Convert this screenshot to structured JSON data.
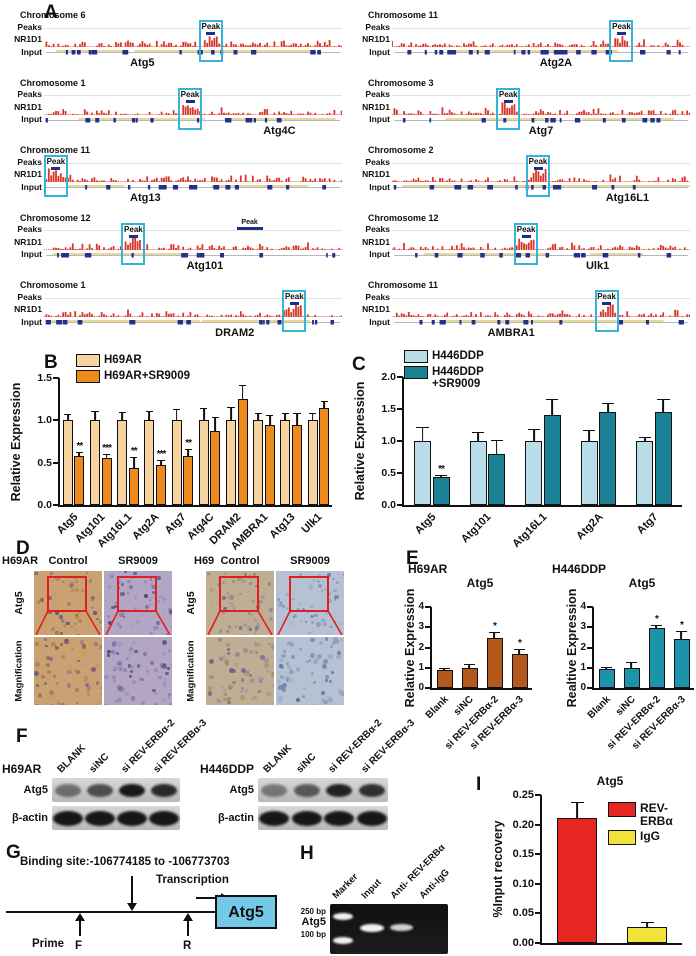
{
  "colors": {
    "signal_red": "#d9372a",
    "input_blue": "#22308a",
    "input_yellow": "#d4b22c",
    "peak_box": "#35b4d8",
    "atg5_box": "#74c8e8",
    "peach": "#f6d3a0",
    "orange": "#ec8a1e",
    "light_blue": "#b9dde8",
    "teal": "#1b8296",
    "brown": "#b4591c",
    "teal2": "#1b93a8",
    "red": "#e62621",
    "yellow": "#f1e33c"
  },
  "panel_a": {
    "label": "A",
    "row_labels": [
      "Peaks",
      "NR1D1",
      "Input"
    ],
    "peak_label": "Peak",
    "tracks": [
      {
        "chromosome": "Chromosome 6",
        "gene": "Atg5",
        "peak_x": 56,
        "gene_x": 33
      },
      {
        "chromosome": "Chromosome 11",
        "gene": "Atg2A",
        "peak_x": 77,
        "gene_x": 55
      },
      {
        "chromosome": "Chromosome 1",
        "gene": "Atg4C",
        "peak_x": 49,
        "gene_x": 79
      },
      {
        "chromosome": "Chromosome 3",
        "gene": "Atg7",
        "peak_x": 39,
        "gene_x": 50
      },
      {
        "chromosome": "Chromosome 11",
        "gene": "Atg13",
        "peak_x": 4,
        "gene_x": 34
      },
      {
        "chromosome": "Chromosome 2",
        "gene": "Atg16L1",
        "peak_x": 49,
        "gene_x": 79
      },
      {
        "chromosome": "Chromosome 12",
        "gene": "Atg101",
        "peak_x": 30,
        "gene_x": 54,
        "peak2_x": 69
      },
      {
        "chromosome": "Chromosome 12",
        "gene": "Ulk1",
        "peak_x": 45,
        "gene_x": 69
      },
      {
        "chromosome": "Chromosome 1",
        "gene": "DRAM2",
        "peak_x": 84,
        "gene_x": 64
      },
      {
        "chromosome": "Chromosome 11",
        "gene": "AMBRA1",
        "peak_x": 72,
        "gene_x": 40
      }
    ]
  },
  "panel_b": {
    "label": "B"
  },
  "panel_c": {
    "label": "C"
  },
  "panel_d": {
    "label": "D",
    "cell_lines": [
      "H69AR",
      "H69"
    ],
    "col_headers": [
      "Control",
      "SR9009",
      "Control",
      "SR9009"
    ],
    "row_labels": [
      "Atg5",
      "Magnification"
    ]
  },
  "panel_e": {
    "label": "E"
  },
  "panel_f": {
    "label": "F",
    "cell_lines": [
      "H69AR",
      "H446DDP"
    ],
    "lanes": [
      "BLANK",
      "siNC",
      "si REV-ERBα-2",
      "si REV-ERBα-3"
    ],
    "rows": [
      "Atg5",
      "β-actin"
    ]
  },
  "panel_g": {
    "label": "G",
    "binding_site": "Binding site:-106774185 to -106773703",
    "transcription": "Transcription",
    "gene_box": "Atg5",
    "prime_label": "Prime",
    "primer_f": "F",
    "primer_r": "R"
  },
  "panel_h": {
    "label": "H",
    "lanes": [
      "Marker",
      "Input",
      "Anti- REV-ERBα",
      "Anti-IgG"
    ],
    "marker_labels": [
      "250 bp",
      "Atg5",
      "100 bp"
    ]
  },
  "panel_i": {
    "label": "I"
  },
  "chart_data": [
    {
      "id": "B",
      "type": "bar",
      "ylabel": "Relative Expression",
      "ylim": [
        0,
        1.5
      ],
      "yticks": [
        "0.0",
        "0.5",
        "1.0",
        "1.5"
      ],
      "categories": [
        "Atg5",
        "Atg101",
        "Atg16L1",
        "Atg2A",
        "Atg7",
        "Atg4C",
        "DRAM2",
        "AMBRA1",
        "Atg13",
        "Ulk1"
      ],
      "series": [
        {
          "name": "H69AR",
          "color": "#f6d3a0",
          "values": [
            1,
            1,
            1,
            1,
            1,
            1,
            1,
            1,
            1,
            1
          ],
          "errors": [
            0.06,
            0.1,
            0.09,
            0.1,
            0.12,
            0.14,
            0.15,
            0.08,
            0.08,
            0.08
          ]
        },
        {
          "name": "H69AR+SR9009",
          "color": "#ec8a1e",
          "values": [
            0.58,
            0.55,
            0.44,
            0.47,
            0.58,
            0.88,
            1.25,
            0.95,
            0.95,
            1.15
          ],
          "errors": [
            0.04,
            0.04,
            0.12,
            0.05,
            0.07,
            0.15,
            0.15,
            0.1,
            0.12,
            0.07
          ]
        }
      ],
      "sig": [
        "**",
        "***",
        "**",
        "***",
        "**",
        "",
        "",
        "",
        "",
        ""
      ],
      "legend_position": "top-left",
      "grid": false
    },
    {
      "id": "C",
      "type": "bar",
      "ylabel": "Relative Expression",
      "ylim": [
        0,
        2.0
      ],
      "yticks": [
        "0.0",
        "0.5",
        "1.0",
        "1.5",
        "2.0"
      ],
      "categories": [
        "Atg5",
        "Atg101",
        "Atg16L1",
        "Atg2A",
        "Atg7"
      ],
      "series": [
        {
          "name": "H446DDP",
          "color": "#b9dde8",
          "values": [
            1,
            1,
            1,
            1,
            1
          ],
          "errors": [
            0.2,
            0.13,
            0.17,
            0.15,
            0.05
          ]
        },
        {
          "name": "H446DDP +SR9009",
          "color": "#1b8296",
          "values": [
            0.43,
            0.8,
            1.4,
            1.46,
            1.46
          ],
          "errors": [
            0.03,
            0.2,
            0.24,
            0.12,
            0.18
          ]
        }
      ],
      "sig": [
        "**",
        "",
        "",
        "",
        ""
      ],
      "legend_position": "top-left",
      "grid": false
    },
    {
      "id": "E1",
      "type": "bar",
      "header": "H69AR",
      "title": "Atg5",
      "ylabel": "Relative Expression",
      "ylim": [
        0,
        4
      ],
      "yticks": [
        "0",
        "1",
        "2",
        "3",
        "4"
      ],
      "categories": [
        "Blank",
        "siNC",
        "si REV-ERBα-2",
        "si REV-ERBα-3"
      ],
      "series": [
        {
          "name": "",
          "color": "#b4591c",
          "values": [
            0.87,
            1.0,
            2.45,
            1.7
          ],
          "errors": [
            0.05,
            0.15,
            0.25,
            0.2
          ]
        }
      ],
      "sig": [
        "",
        "",
        "*",
        "*"
      ],
      "grid": false
    },
    {
      "id": "E2",
      "type": "bar",
      "header": "H446DDP",
      "title": "Atg5",
      "ylabel": "Realtive Expression",
      "ylim": [
        0,
        4
      ],
      "yticks": [
        "0",
        "1",
        "2",
        "3",
        "4"
      ],
      "categories": [
        "Blank",
        "siNC",
        "si REV-ERBα-2",
        "si REV-ERBα-3"
      ],
      "series": [
        {
          "name": "",
          "color": "#1b93a8",
          "values": [
            0.95,
            1.0,
            2.95,
            2.4
          ],
          "errors": [
            0.05,
            0.22,
            0.12,
            0.35
          ]
        }
      ],
      "sig": [
        "",
        "",
        "*",
        "*"
      ],
      "grid": false
    },
    {
      "id": "I",
      "type": "bar",
      "title": "Atg5",
      "ylabel": "%Input recovery",
      "ylim": [
        0,
        0.25
      ],
      "yticks": [
        "0.00",
        "0.05",
        "0.10",
        "0.15",
        "0.20",
        "0.25"
      ],
      "categories": [
        "REV-ERBα",
        "IgG"
      ],
      "series": [
        {
          "name": "",
          "values": [
            0.212,
            0.027
          ],
          "errors": [
            0.025,
            0.007
          ],
          "colors": [
            "#e62621",
            "#f1e33c"
          ]
        }
      ],
      "sig": [
        "",
        ""
      ],
      "legend_entries": [
        {
          "label": "REV-ERBα",
          "color": "#e62621"
        },
        {
          "label": "IgG",
          "color": "#f1e33c"
        }
      ],
      "show_xlabels": false,
      "legend_position": "top-right",
      "grid": false
    }
  ]
}
